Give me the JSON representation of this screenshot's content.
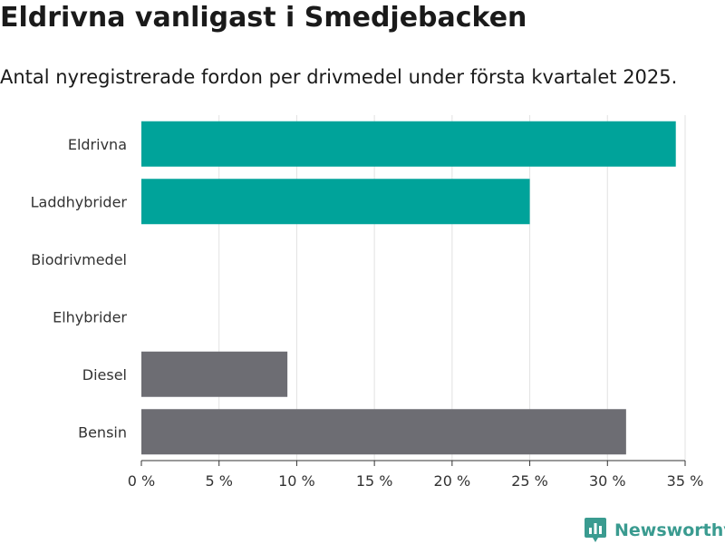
{
  "header": {
    "title": "Eldrivna vanligast i Smedjebacken",
    "subtitle": "Antal nyregistrerade fordon per drivmedel under första kvartalet 2025."
  },
  "branding": {
    "logo_text": "Newsworthy",
    "logo_icon": "bar-chart-speech-bubble-icon",
    "color": "#3a9b90"
  },
  "chart_data": {
    "type": "bar",
    "orientation": "horizontal",
    "categories": [
      "Eldrivna",
      "Laddhybrider",
      "Biodrivmedel",
      "Elhybrider",
      "Diesel",
      "Bensin"
    ],
    "values": [
      34.4,
      25.0,
      0,
      0,
      9.4,
      31.2
    ],
    "colors": [
      "#00a39a",
      "#00a39a",
      "#00a39a",
      "#00a39a",
      "#6d6d73",
      "#6d6d73"
    ],
    "xticks": [
      0,
      5,
      10,
      15,
      20,
      25,
      30,
      35
    ],
    "tick_suffix": " %",
    "xlim": [
      0,
      35
    ],
    "grid": true,
    "title": "",
    "xlabel": "",
    "ylabel": ""
  }
}
